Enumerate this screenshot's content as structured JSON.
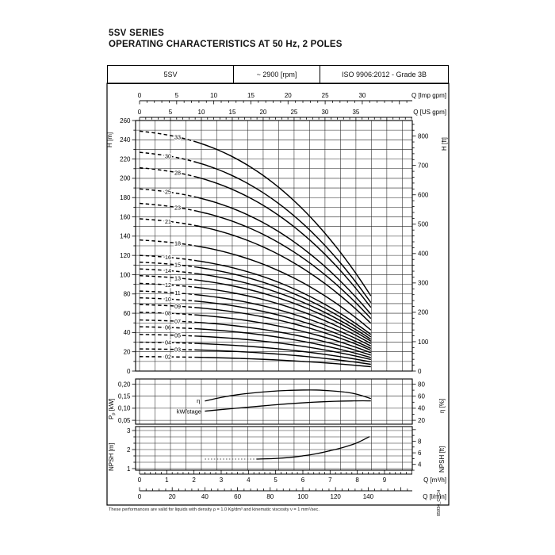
{
  "titles": {
    "series": "5SV SERIES",
    "subtitle": "OPERATING CHARACTERISTICS AT 50 Hz, 2 POLES"
  },
  "header": {
    "model": "5SV",
    "speed": "~ 2900 [rpm]",
    "standard": "ISO 9906:2012 - Grade 3B"
  },
  "footnote": "These performances are valid for liquids with density ρ = 1.0 Kg/dm³ and kinematic viscosity ν = 1 mm²/sec.",
  "doc_code": "05934_C_CH",
  "chart_data": {
    "type": "line",
    "charts": [
      {
        "id": "head_curves",
        "type": "line",
        "title": "Head vs flow per number of stages",
        "x_top_axes": [
          {
            "label": "Q [Imp gpm]",
            "ticks": [
              0,
              5,
              10,
              15,
              20,
              25,
              30
            ],
            "major_step": 5,
            "minor_step": 1,
            "m3h_per_unit": 0.27277
          },
          {
            "label": "Q [US gpm]",
            "ticks": [
              0,
              5,
              10,
              15,
              20,
              25,
              30,
              35
            ],
            "major_step": 5,
            "minor_step": 1,
            "m3h_per_unit": 0.22712
          }
        ],
        "y_left": {
          "label": "H [m]",
          "ticks": [
            0,
            20,
            40,
            60,
            80,
            100,
            120,
            140,
            160,
            180,
            200,
            220,
            240,
            260
          ],
          "major_step": 20,
          "minor_step": 10,
          "range": [
            0,
            260
          ]
        },
        "y_right": {
          "label": "H [ft]",
          "ticks": [
            0,
            100,
            200,
            300,
            400,
            500,
            600,
            700,
            800
          ],
          "major_step": 100,
          "minor_step": 20,
          "ft_per_m": 3.2808
        },
        "flow_range_m3h": [
          0,
          10
        ],
        "curves_q_end_m3h": 8.5,
        "dashed_until_m3h": 2.1,
        "series": [
          {
            "stages": "33",
            "shutoff_head_m": 249,
            "head_at_qend_m": 78
          },
          {
            "stages": "30",
            "shutoff_head_m": 227,
            "head_at_qend_m": 71
          },
          {
            "stages": "28",
            "shutoff_head_m": 211,
            "head_at_qend_m": 66
          },
          {
            "stages": "25",
            "shutoff_head_m": 189,
            "head_at_qend_m": 59
          },
          {
            "stages": "23",
            "shutoff_head_m": 174,
            "head_at_qend_m": 54.5
          },
          {
            "stages": "21",
            "shutoff_head_m": 158,
            "head_at_qend_m": 49.5
          },
          {
            "stages": "18",
            "shutoff_head_m": 136,
            "head_at_qend_m": 42.5
          },
          {
            "stages": "16",
            "shutoff_head_m": 120,
            "head_at_qend_m": 38
          },
          {
            "stages": "15",
            "shutoff_head_m": 113,
            "head_at_qend_m": 35.5
          },
          {
            "stages": "14",
            "shutoff_head_m": 106,
            "head_at_qend_m": 33
          },
          {
            "stages": "13",
            "shutoff_head_m": 99,
            "head_at_qend_m": 31
          },
          {
            "stages": "12",
            "shutoff_head_m": 91,
            "head_at_qend_m": 28.5
          },
          {
            "stages": "11",
            "shutoff_head_m": 83,
            "head_at_qend_m": 26
          },
          {
            "stages": "10",
            "shutoff_head_m": 76,
            "head_at_qend_m": 23.5
          },
          {
            "stages": "09",
            "shutoff_head_m": 69,
            "head_at_qend_m": 21.5
          },
          {
            "stages": "08",
            "shutoff_head_m": 61,
            "head_at_qend_m": 19
          },
          {
            "stages": "07",
            "shutoff_head_m": 53,
            "head_at_qend_m": 16.5
          },
          {
            "stages": "06",
            "shutoff_head_m": 46,
            "head_at_qend_m": 14
          },
          {
            "stages": "05",
            "shutoff_head_m": 38,
            "head_at_qend_m": 12
          },
          {
            "stages": "04",
            "shutoff_head_m": 30,
            "head_at_qend_m": 9.5
          },
          {
            "stages": "03",
            "shutoff_head_m": 23,
            "head_at_qend_m": 7
          },
          {
            "stages": "02",
            "shutoff_head_m": 15,
            "head_at_qend_m": 4.5
          }
        ]
      },
      {
        "id": "power_efficiency",
        "type": "line",
        "y_left": {
          "label": "Pp [kW]",
          "label_sub": {
            "pre": "P",
            "sub": "p",
            "post": " [kW]"
          },
          "ticks": [
            "0,20",
            "0,15",
            "0,10",
            "0,05"
          ],
          "tick_values": [
            0.2,
            0.15,
            0.1,
            0.05
          ]
        },
        "y_right": {
          "label": "η [%]",
          "ticks": [
            80,
            60,
            40,
            20
          ],
          "minor_step": 10
        },
        "series": [
          {
            "name": "kW/stage",
            "unit": "kW",
            "points": [
              [
                2.4,
                0.088
              ],
              [
                3.0,
                0.0945
              ],
              [
                3.6,
                0.1005
              ],
              [
                4.2,
                0.1065
              ],
              [
                4.8,
                0.1125
              ],
              [
                5.4,
                0.118
              ],
              [
                6.0,
                0.1225
              ],
              [
                6.6,
                0.1262
              ],
              [
                7.2,
                0.1288
              ],
              [
                7.8,
                0.1303
              ],
              [
                8.2,
                0.131
              ],
              [
                8.5,
                0.1305
              ]
            ]
          },
          {
            "name": "η",
            "unit": "%",
            "points": [
              [
                2.4,
                52
              ],
              [
                3.0,
                58
              ],
              [
                3.6,
                62.5
              ],
              [
                4.2,
                65.5
              ],
              [
                4.8,
                68
              ],
              [
                5.4,
                69.5
              ],
              [
                6.0,
                70.2
              ],
              [
                6.5,
                70.2
              ],
              [
                7.0,
                69
              ],
              [
                7.6,
                66.5
              ],
              [
                8.0,
                63
              ],
              [
                8.5,
                56
              ]
            ]
          }
        ]
      },
      {
        "id": "npsh",
        "type": "line",
        "y_left": {
          "label": "NPSH [m]",
          "ticks": [
            3,
            2,
            1
          ],
          "range": [
            0.75,
            3.2
          ]
        },
        "y_right": {
          "label": "NPSH [ft]",
          "ticks": [
            8,
            6,
            4
          ],
          "minor_step": 1
        },
        "x_bottom_axes": [
          {
            "label": "Q [m³/h]",
            "ticks": [
              0,
              1,
              2,
              3,
              4,
              5,
              6,
              7,
              8,
              9
            ],
            "major_step": 1,
            "minor_step": 0.2,
            "m3h_per_unit": 1
          },
          {
            "label": "Q [l/min]",
            "ticks": [
              0,
              20,
              40,
              60,
              80,
              100,
              120,
              140
            ],
            "major_step": 20,
            "minor_step": 4,
            "m3h_per_unit": 0.06
          }
        ],
        "series": [
          {
            "name": "NPSH",
            "unit": "m",
            "points": [
              [
                4.3,
                1.5
              ],
              [
                5.0,
                1.53
              ],
              [
                5.5,
                1.58
              ],
              [
                6.0,
                1.67
              ],
              [
                6.5,
                1.78
              ],
              [
                7.0,
                1.94
              ],
              [
                7.5,
                2.12
              ],
              [
                8.0,
                2.36
              ],
              [
                8.45,
                2.68
              ]
            ],
            "lead_in_points": [
              [
                2.4,
                1.5
              ],
              [
                4.3,
                1.5
              ]
            ]
          }
        ]
      }
    ]
  }
}
